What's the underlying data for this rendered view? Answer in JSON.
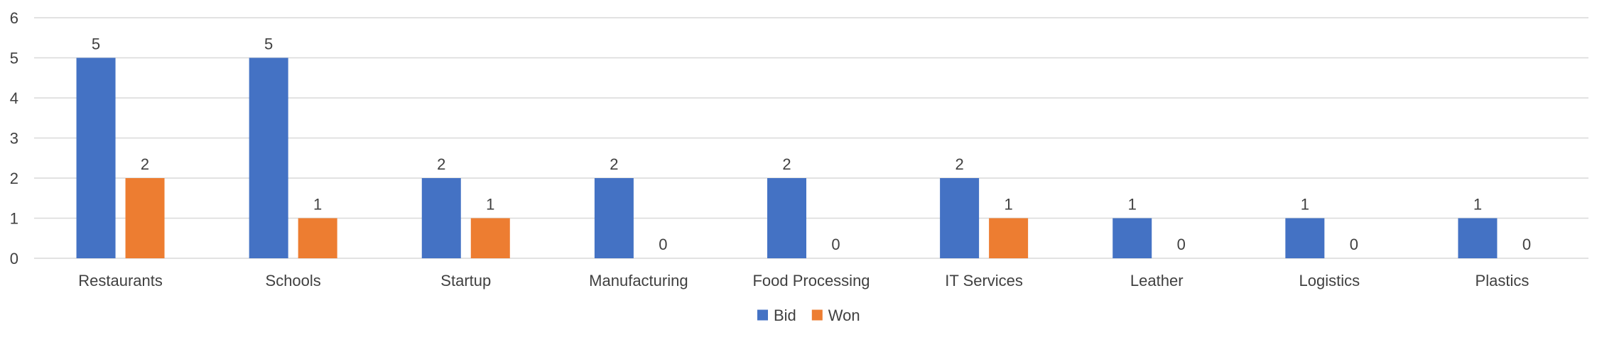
{
  "chart_data": {
    "type": "bar",
    "title": "",
    "xlabel": "",
    "ylabel": "",
    "categories": [
      "Restaurants",
      "Schools",
      "Startup",
      "Manufacturing",
      "Food Processing",
      "IT Services",
      "Leather",
      "Logistics",
      "Plastics"
    ],
    "series": [
      {
        "name": "Bid",
        "color": "#4472C4",
        "values": [
          5,
          5,
          2,
          2,
          2,
          2,
          1,
          1,
          1
        ]
      },
      {
        "name": "Won",
        "color": "#ED7D31",
        "values": [
          2,
          1,
          1,
          0,
          0,
          1,
          0,
          0,
          0
        ]
      }
    ],
    "ylim": [
      0,
      6
    ],
    "yticks": [
      0,
      1,
      2,
      3,
      4,
      5,
      6
    ],
    "grid": true,
    "legend": "bottom-center",
    "data_labels": true
  }
}
